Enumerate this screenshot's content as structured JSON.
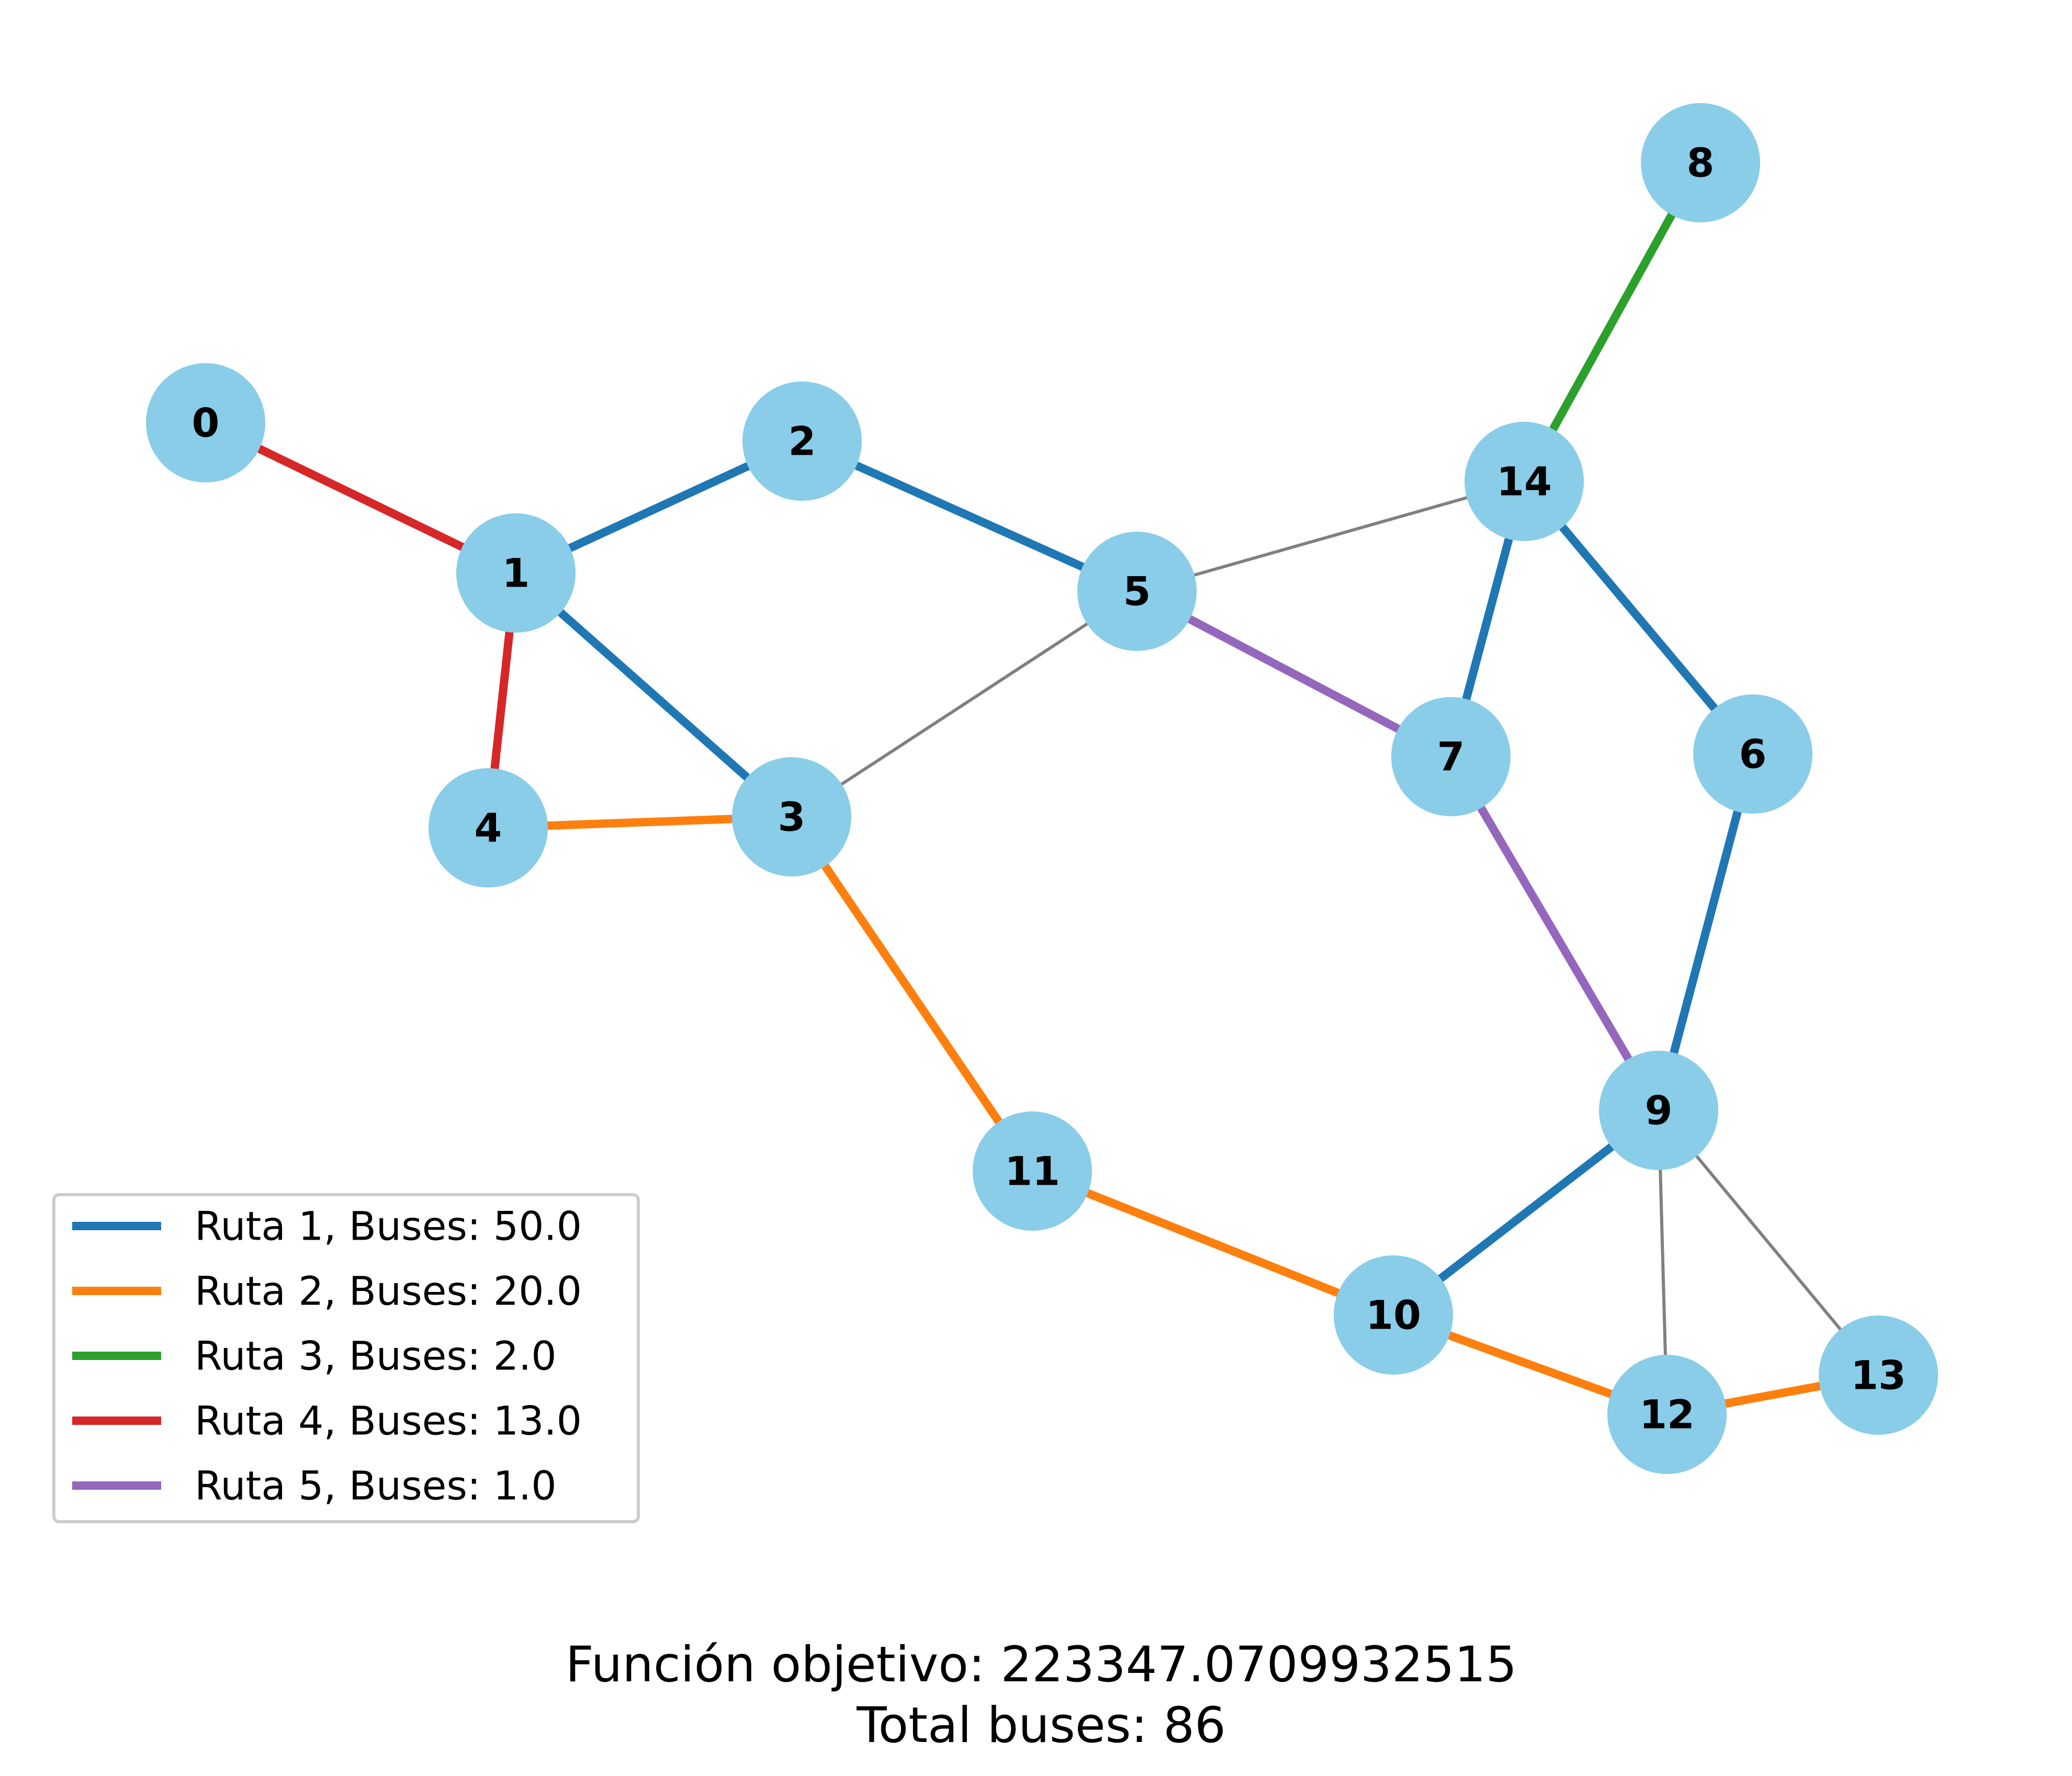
{
  "graph": {
    "nodes": [
      "0",
      "1",
      "2",
      "3",
      "4",
      "5",
      "6",
      "7",
      "8",
      "9",
      "10",
      "11",
      "12",
      "13",
      "14"
    ],
    "node_color": "#89cde9",
    "edges": [
      {
        "from": "0",
        "to": "1",
        "route": "ruta4"
      },
      {
        "from": "1",
        "to": "4",
        "route": "ruta4"
      },
      {
        "from": "1",
        "to": "2",
        "route": "ruta1"
      },
      {
        "from": "2",
        "to": "5",
        "route": "ruta1"
      },
      {
        "from": "1",
        "to": "3",
        "route": "ruta1"
      },
      {
        "from": "14",
        "to": "7",
        "route": "ruta1"
      },
      {
        "from": "14",
        "to": "6",
        "route": "ruta1"
      },
      {
        "from": "6",
        "to": "9",
        "route": "ruta1"
      },
      {
        "from": "9",
        "to": "10",
        "route": "ruta1"
      },
      {
        "from": "4",
        "to": "3",
        "route": "ruta2"
      },
      {
        "from": "3",
        "to": "11",
        "route": "ruta2"
      },
      {
        "from": "11",
        "to": "10",
        "route": "ruta2"
      },
      {
        "from": "10",
        "to": "12",
        "route": "ruta2"
      },
      {
        "from": "12",
        "to": "13",
        "route": "ruta2"
      },
      {
        "from": "14",
        "to": "8",
        "route": "ruta3"
      },
      {
        "from": "5",
        "to": "7",
        "route": "ruta5"
      },
      {
        "from": "7",
        "to": "9",
        "route": "ruta5"
      },
      {
        "from": "5",
        "to": "14",
        "route": "none"
      },
      {
        "from": "3",
        "to": "5",
        "route": "none"
      },
      {
        "from": "9",
        "to": "12",
        "route": "none"
      },
      {
        "from": "9",
        "to": "13",
        "route": "none"
      }
    ]
  },
  "routes": {
    "ruta1": {
      "label": "Ruta 1, Buses: 50.0",
      "color": "#1f77b4"
    },
    "ruta2": {
      "label": "Ruta 2, Buses: 20.0",
      "color": "#ff7f0e"
    },
    "ruta3": {
      "label": "Ruta 3, Buses: 2.0",
      "color": "#2ca02c"
    },
    "ruta4": {
      "label": "Ruta 4, Buses: 13.0",
      "color": "#d62728"
    },
    "ruta5": {
      "label": "Ruta 5, Buses: 1.0",
      "color": "#9467bd"
    },
    "none": {
      "color": "#808080"
    }
  },
  "legend_order": [
    "ruta1",
    "ruta2",
    "ruta3",
    "ruta4",
    "ruta5"
  ],
  "footer": {
    "line1": "Función objetivo: 223347.0709932515",
    "line2": "Total buses: 86"
  }
}
